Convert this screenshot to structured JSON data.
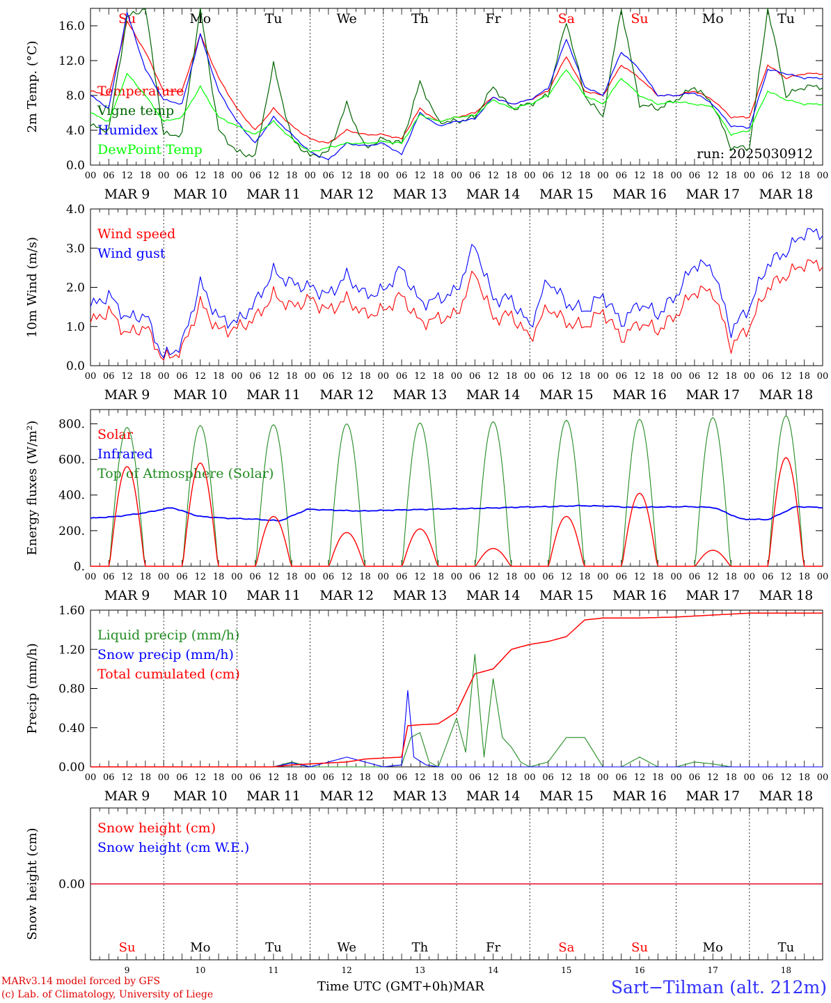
{
  "chart_data": [
    {
      "type": "line",
      "ylabel": "2m Temp. (°C)",
      "ylim": [
        0,
        18
      ],
      "yticks": [
        "0.0",
        "4.0",
        "8.0",
        "12.0",
        "16.0"
      ],
      "annotation": "run: 2025030912",
      "grid": "dashed vertical at day boundaries",
      "legend_placement": "left, inside plot",
      "x": [
        0,
        6,
        12,
        18,
        24,
        30,
        36,
        42,
        48,
        54,
        60,
        66,
        72,
        78,
        84,
        90,
        96,
        102,
        108,
        114,
        120,
        126,
        132,
        138,
        144,
        150,
        156,
        162,
        168,
        174,
        180,
        186,
        192,
        198,
        204,
        210,
        216,
        222,
        228,
        234
      ],
      "series": [
        {
          "name": "Temperature",
          "color": "#ff0000",
          "values": [
            8.5,
            8.0,
            16.5,
            13.0,
            8.5,
            8.5,
            15.0,
            10.0,
            6.5,
            4.0,
            6.5,
            4.5,
            3.0,
            2.5,
            4.0,
            3.5,
            3.5,
            3.0,
            6.5,
            5.0,
            5.5,
            6.0,
            7.8,
            7.0,
            7.5,
            8.5,
            12.5,
            8.5,
            8.0,
            11.5,
            10.0,
            8.0,
            8.0,
            8.5,
            7.5,
            5.5,
            5.5,
            11.5,
            10.0,
            10.5
          ]
        },
        {
          "name": "Vigne temp",
          "color": "#006400",
          "values": [
            4.5,
            4.0,
            17.0,
            18.0,
            3.5,
            3.5,
            18.0,
            4.0,
            1.5,
            1.0,
            11.5,
            3.0,
            1.0,
            1.5,
            7.0,
            2.0,
            3.0,
            2.5,
            9.5,
            5.0,
            5.0,
            5.5,
            9.0,
            6.5,
            7.0,
            8.0,
            16.5,
            8.0,
            5.5,
            18.0,
            7.0,
            6.5,
            7.5,
            9.0,
            7.0,
            2.0,
            2.0,
            18.0,
            8.0,
            9.0
          ]
        },
        {
          "name": "Humidex",
          "color": "#0000ff",
          "values": [
            8.0,
            6.5,
            17.5,
            11.0,
            7.5,
            7.0,
            15.0,
            8.5,
            5.0,
            2.5,
            5.5,
            3.5,
            1.5,
            0.6,
            2.5,
            2.2,
            2.5,
            1.2,
            6.0,
            4.5,
            5.0,
            5.3,
            7.8,
            7.0,
            7.5,
            8.8,
            14.5,
            9.0,
            8.0,
            13.0,
            11.0,
            8.0,
            8.0,
            8.3,
            7.0,
            4.5,
            4.3,
            11.0,
            10.5,
            10.0
          ]
        },
        {
          "name": "DewPoint Temp",
          "color": "#00ff00",
          "values": [
            6.0,
            5.0,
            10.5,
            8.0,
            5.0,
            5.5,
            9.0,
            5.5,
            4.5,
            3.5,
            5.0,
            3.0,
            1.5,
            2.0,
            2.5,
            2.5,
            2.7,
            2.5,
            5.8,
            5.0,
            5.5,
            5.7,
            7.5,
            6.5,
            7.0,
            8.0,
            11.0,
            8.0,
            7.0,
            10.0,
            8.0,
            7.0,
            7.3,
            7.0,
            6.7,
            3.5,
            4.0,
            8.5,
            7.5,
            7.0
          ]
        }
      ]
    },
    {
      "type": "line",
      "ylabel": "10m Wind (m/s)",
      "ylim": [
        0,
        4
      ],
      "yticks": [
        "0.0",
        "1.0",
        "2.0",
        "3.0",
        "4.0"
      ],
      "grid": "dashed vertical at day boundaries",
      "legend_placement": "left, inside plot",
      "x": [
        0,
        6,
        12,
        18,
        24,
        30,
        36,
        42,
        48,
        54,
        60,
        66,
        72,
        78,
        84,
        90,
        96,
        102,
        108,
        114,
        120,
        126,
        132,
        138,
        144,
        150,
        156,
        162,
        168,
        174,
        180,
        186,
        192,
        198,
        204,
        210,
        216,
        222,
        228,
        234
      ],
      "series": [
        {
          "name": "Wind speed",
          "color": "#ff0000",
          "values": [
            1.1,
            1.4,
            0.8,
            1.0,
            0.15,
            0.4,
            1.6,
            0.9,
            0.95,
            1.2,
            1.8,
            1.5,
            1.7,
            1.4,
            1.7,
            1.3,
            1.4,
            1.8,
            1.1,
            1.2,
            1.3,
            2.4,
            1.2,
            1.3,
            0.7,
            1.5,
            1.1,
            1.0,
            1.4,
            0.7,
            1.1,
            0.9,
            1.3,
            1.9,
            1.9,
            0.5,
            1.0,
            2.0,
            2.3,
            2.6
          ]
        },
        {
          "name": "Wind gust",
          "color": "#0000ff",
          "values": [
            1.5,
            1.8,
            1.2,
            1.3,
            0.2,
            0.55,
            2.1,
            1.2,
            1.1,
            1.6,
            2.4,
            2.1,
            2.0,
            1.8,
            2.3,
            1.8,
            1.9,
            2.5,
            1.6,
            1.7,
            1.9,
            3.1,
            1.7,
            1.7,
            1.0,
            2.2,
            1.6,
            1.4,
            1.8,
            1.1,
            1.6,
            1.3,
            1.8,
            2.6,
            2.5,
            0.9,
            1.5,
            2.6,
            2.9,
            3.4
          ]
        }
      ]
    },
    {
      "type": "line",
      "ylabel": "Energy fluxes (W/m²)",
      "ylim": [
        0,
        880
      ],
      "yticks": [
        "0.",
        "200.",
        "400.",
        "600.",
        "800."
      ],
      "grid": "dashed vertical at day boundaries",
      "legend_placement": "left, inside plot",
      "daily_peaks": {
        "Solar": [
          560,
          580,
          280,
          190,
          210,
          100,
          280,
          410,
          90,
          610
        ],
        "Top of Atmosphere (Solar)": [
          780,
          790,
          795,
          800,
          805,
          812,
          820,
          825,
          835,
          845
        ]
      },
      "series": [
        {
          "name": "Solar",
          "color": "#ff0000"
        },
        {
          "name": "Infrared",
          "color": "#0000ff",
          "values": [
            270,
            280,
            300,
            330,
            280,
            270,
            265,
            255,
            320,
            315,
            310,
            315,
            318,
            322,
            324,
            328,
            333,
            335,
            340,
            338,
            330,
            333,
            335,
            330,
            265,
            262,
            335,
            330
          ]
        },
        {
          "name": "Top of Atmosphere (Solar)",
          "color": "#228b22"
        }
      ]
    },
    {
      "type": "line",
      "ylabel": "Precip (mm/h)",
      "ylim": [
        0,
        1.6
      ],
      "yticks": [
        "0.00",
        "0.40",
        "0.80",
        "1.20",
        "1.60"
      ],
      "grid": "dashed vertical at day boundaries",
      "legend_placement": "left, inside plot",
      "series": [
        {
          "name": "Liquid precip (mm/h)",
          "color": "#228b22",
          "x": [
            0,
            60,
            66,
            72,
            96,
            102,
            105,
            108,
            111,
            114,
            120,
            123,
            126,
            129,
            132,
            135,
            138,
            141,
            144,
            150,
            156,
            162,
            168,
            174,
            180,
            186,
            192,
            198,
            204,
            210,
            216,
            240
          ],
          "values": [
            0,
            0,
            0.05,
            0,
            0,
            0.02,
            0.3,
            0.35,
            0.05,
            0,
            0.5,
            0.15,
            1.15,
            0.1,
            0.9,
            0.3,
            0.2,
            0.05,
            0,
            0.05,
            0.3,
            0.3,
            0,
            0,
            0.1,
            0,
            0,
            0.05,
            0.03,
            0,
            0,
            0
          ]
        },
        {
          "name": "Snow precip (mm/h)",
          "color": "#0000ff",
          "x": [
            0,
            60,
            66,
            72,
            84,
            90,
            96,
            102,
            104,
            106,
            110,
            114,
            240
          ],
          "values": [
            0,
            0,
            0.04,
            0,
            0.1,
            0.05,
            0,
            0.02,
            0.78,
            0.1,
            0.02,
            0,
            0
          ]
        },
        {
          "name": "Total cumulated (cm)",
          "color": "#ff0000",
          "x": [
            0,
            60,
            66,
            72,
            84,
            90,
            96,
            102,
            104,
            108,
            114,
            120,
            126,
            132,
            138,
            144,
            150,
            156,
            162,
            168,
            180,
            192,
            204,
            216,
            240
          ],
          "values": [
            0,
            0,
            0.02,
            0.03,
            0.05,
            0.08,
            0.09,
            0.1,
            0.42,
            0.43,
            0.44,
            0.56,
            0.95,
            1.0,
            1.2,
            1.25,
            1.28,
            1.33,
            1.5,
            1.52,
            1.52,
            1.53,
            1.55,
            1.57,
            1.57
          ]
        }
      ]
    },
    {
      "type": "line",
      "ylabel": "Snow height (cm)",
      "yticks": [
        "0.00"
      ],
      "grid": "dashed vertical at day boundaries",
      "legend_placement": "left, inside plot",
      "x": [
        0,
        240
      ],
      "series": [
        {
          "name": "Snow height (cm)",
          "color": "#ff0000",
          "values": [
            0,
            0
          ]
        },
        {
          "name": "Snow height (cm W.E.)",
          "color": "#0000ff",
          "values": [
            0,
            0
          ]
        }
      ]
    }
  ],
  "days": [
    {
      "weekday": "Su",
      "date": "MAR  9",
      "num": "9",
      "weekend": true
    },
    {
      "weekday": "Mo",
      "date": "MAR 10",
      "num": "10",
      "weekend": false
    },
    {
      "weekday": "Tu",
      "date": "MAR 11",
      "num": "11",
      "weekend": false
    },
    {
      "weekday": "We",
      "date": "MAR 12",
      "num": "12",
      "weekend": false
    },
    {
      "weekday": "Th",
      "date": "MAR 13",
      "num": "13",
      "weekend": false
    },
    {
      "weekday": "Fr",
      "date": "MAR 14",
      "num": "14",
      "weekend": false
    },
    {
      "weekday": "Sa",
      "date": "MAR 15",
      "num": "15",
      "weekend": true
    },
    {
      "weekday": "Su",
      "date": "MAR 16",
      "num": "16",
      "weekend": true
    },
    {
      "weekday": "Mo",
      "date": "MAR 17",
      "num": "17",
      "weekend": false
    },
    {
      "weekday": "Tu",
      "date": "MAR 18",
      "num": "18",
      "weekend": false
    }
  ],
  "hour_labels": [
    "00",
    "06",
    "12",
    "18"
  ],
  "end_hour_label": "00",
  "colors": {
    "weekend": "#ff0000",
    "weekday": "#000000",
    "station": "#3030ff",
    "credit": "#e00000"
  },
  "footer": {
    "credit_line1": "MARv3.14 model forced by GFS",
    "credit_line2": "(c) Lab. of Climatology, University of Liege",
    "xlabel": "Time UTC (GMT+0h)MAR",
    "station": "Sart−Tilman (alt. 212m)"
  }
}
